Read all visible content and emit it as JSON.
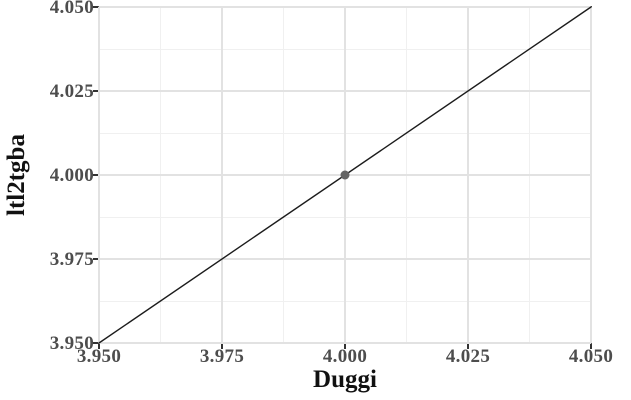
{
  "chart_data": {
    "type": "scatter",
    "title": "",
    "xlabel": "Duggi",
    "ylabel": "ltl2tgba",
    "xlim": [
      3.95,
      4.05
    ],
    "ylim": [
      3.95,
      4.05
    ],
    "xticks": {
      "values": [
        3.95,
        3.975,
        4.0,
        4.025,
        4.05
      ],
      "labels": [
        "3.950",
        "3.975",
        "4.000",
        "4.025",
        "4.050"
      ]
    },
    "yticks": {
      "values": [
        3.95,
        3.975,
        4.0,
        4.025,
        4.05
      ],
      "labels": [
        "3.950",
        "3.975",
        "4.000",
        "4.025",
        "4.050"
      ]
    },
    "minor_xticks": [
      3.9625,
      3.9875,
      4.0125,
      4.0375
    ],
    "minor_yticks": [
      3.9625,
      3.9875,
      4.0125,
      4.0375
    ],
    "grid": "major and minor gridlines, light gray on white panel",
    "legend": null,
    "points": [
      {
        "x": 4.0,
        "y": 4.0
      }
    ],
    "identity_line": {
      "x1": 3.95,
      "y1": 3.95,
      "x2": 4.05,
      "y2": 4.05
    },
    "colors": {
      "line": "#1c1c1c",
      "point": "#646464",
      "grid_major": "#e2e2e2",
      "grid_minor": "#f0f0f0",
      "panel_border": "#565656",
      "tick": "#333333",
      "tick_label": "#4d4d4d",
      "axis_title": "#111111",
      "background": "#ffffff"
    }
  }
}
